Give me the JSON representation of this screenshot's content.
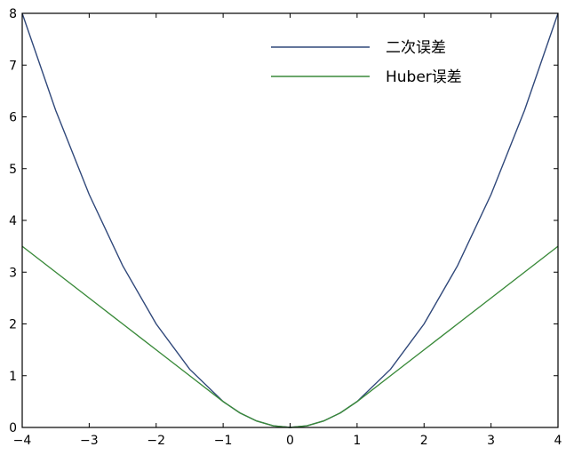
{
  "chart_data": {
    "type": "line",
    "title": "",
    "xlabel": "",
    "ylabel": "",
    "xlim": [
      -4,
      4
    ],
    "ylim": [
      0,
      8
    ],
    "xticks": [
      -4,
      -3,
      -2,
      -1,
      0,
      1,
      2,
      3,
      4
    ],
    "xtick_labels": [
      "−4",
      "−3",
      "−2",
      "−1",
      "0",
      "1",
      "2",
      "3",
      "4"
    ],
    "yticks": [
      0,
      1,
      2,
      3,
      4,
      5,
      6,
      7,
      8
    ],
    "ytick_labels": [
      "0",
      "1",
      "2",
      "3",
      "4",
      "5",
      "6",
      "7",
      "8"
    ],
    "grid": false,
    "legend_position": "top-right",
    "x": [
      -4,
      -3.5,
      -3,
      -2.5,
      -2,
      -1.5,
      -1,
      -0.75,
      -0.5,
      -0.25,
      0,
      0.25,
      0.5,
      0.75,
      1,
      1.5,
      2,
      2.5,
      3,
      3.5,
      4
    ],
    "series": [
      {
        "name": "二次误差",
        "color": "#30487a",
        "y": [
          8,
          6.125,
          4.5,
          3.125,
          2,
          1.125,
          0.5,
          0.28125,
          0.125,
          0.03125,
          0,
          0.03125,
          0.125,
          0.28125,
          0.5,
          1.125,
          2,
          3.125,
          4.5,
          6.125,
          8
        ]
      },
      {
        "name": "Huber误差",
        "color": "#3a8a3a",
        "y": [
          3.5,
          3.0,
          2.5,
          2.0,
          1.5,
          1.0,
          0.5,
          0.28125,
          0.125,
          0.03125,
          0,
          0.03125,
          0.125,
          0.28125,
          0.5,
          1.0,
          1.5,
          2.0,
          2.5,
          3.0,
          3.5
        ]
      }
    ]
  }
}
